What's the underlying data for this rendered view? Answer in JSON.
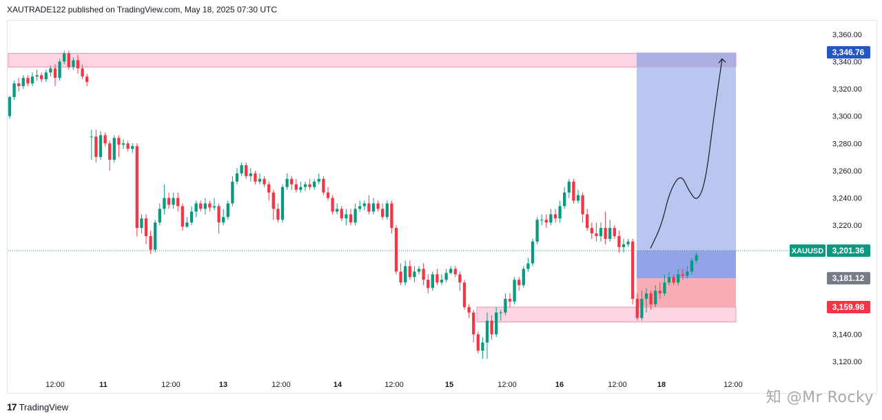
{
  "header": {
    "publisher_text": "XAUTRADE122 published on TradingView.com, May 18, 2025 07:30 UTC"
  },
  "footer": {
    "brand": "TradingView",
    "brand_mark": "17"
  },
  "watermark": {
    "text": "知 @Mr Rocky"
  },
  "colors": {
    "up": "#089981",
    "down": "#f23645",
    "profit_zone": "#b4c0ee",
    "entry_profit": "#8c9fe6",
    "stop_zone": "#f8a8b0",
    "supply_zone": "#fcd5e2",
    "target_badge": "#2455cc",
    "price_badge": "#089981",
    "entry_badge": "#787b86",
    "stop_badge": "#f23645"
  },
  "chart_data": {
    "type": "candlestick",
    "symbol": "XAUUSD",
    "y_range": [
      3110,
      3370
    ],
    "y_ticks": [
      "3,360.00",
      "3,340.00",
      "3,320.00",
      "3,300.00",
      "3,280.00",
      "3,260.00",
      "3,240.00",
      "3,220.00",
      "3,140.00",
      "3,120.00"
    ],
    "y_tick_values": [
      3360,
      3340,
      3320,
      3300,
      3280,
      3260,
      3240,
      3220,
      3140,
      3120
    ],
    "x_tick_labels": [
      "12:00",
      "11",
      "12:00",
      "13",
      "12:00",
      "14",
      "12:00",
      "15",
      "12:00",
      "16",
      "12:00",
      "18",
      "12:00"
    ],
    "x_tick_slots": [
      17,
      34.5,
      59,
      78,
      99,
      119.5,
      140,
      160,
      181,
      200,
      221,
      237,
      263
    ],
    "x_tick_bold": [
      false,
      true,
      false,
      true,
      false,
      true,
      false,
      true,
      false,
      true,
      false,
      true,
      false
    ],
    "x_slots_total": 296,
    "price_labels": {
      "target": {
        "text": "3,346.76",
        "value": 3346.76
      },
      "current_symbol": "XAUUSD",
      "current": {
        "text": "3,201.36",
        "value": 3201.36
      },
      "entry": {
        "text": "3,181.12",
        "value": 3181.12
      },
      "stop": {
        "text": "3,159.98",
        "value": 3159.98
      }
    },
    "zones": [
      {
        "name": "supply",
        "slot_start": 0,
        "slot_end": 264,
        "low": 3336,
        "high": 3346
      },
      {
        "name": "demand",
        "slot_start": 170,
        "slot_end": 264,
        "low": 3149,
        "high": 3160
      }
    ],
    "position": {
      "slot_start": 228,
      "slot_end": 264,
      "target": 3346.76,
      "entry": 3181.12,
      "stop": 3159.98,
      "current": 3201.36
    },
    "projection": [
      [
        233,
        3203
      ],
      [
        237,
        3220
      ],
      [
        240,
        3245
      ],
      [
        244,
        3258
      ],
      [
        247,
        3245
      ],
      [
        250,
        3237
      ],
      [
        253,
        3252
      ],
      [
        256,
        3300
      ],
      [
        259,
        3342
      ]
    ],
    "candles": [
      [
        3300,
        3314,
        3298,
        3315
      ],
      [
        3314,
        3324,
        3312,
        3326
      ],
      [
        3324,
        3322,
        3318,
        3328
      ],
      [
        3322,
        3328,
        3320,
        3330
      ],
      [
        3328,
        3324,
        3322,
        3330
      ],
      [
        3324,
        3329,
        3322,
        3332
      ],
      [
        3329,
        3330,
        3326,
        3334
      ],
      [
        3330,
        3327,
        3325,
        3332
      ],
      [
        3327,
        3332,
        3325,
        3334
      ],
      [
        3332,
        3335,
        3329,
        3337
      ],
      [
        3335,
        3328,
        3322,
        3338
      ],
      [
        3328,
        3340,
        3326,
        3342
      ],
      [
        3340,
        3346,
        3338,
        3348
      ],
      [
        3346,
        3336,
        3334,
        3348
      ],
      [
        3336,
        3341,
        3334,
        3343
      ],
      [
        3341,
        3335,
        3331,
        3345
      ],
      [
        3335,
        3329,
        3327,
        3338
      ],
      [
        3329,
        3325,
        3322,
        3331
      ],
      [
        3285,
        3285,
        3268,
        3290
      ],
      [
        3285,
        3270,
        3266,
        3290
      ],
      [
        3270,
        3286,
        3268,
        3289
      ],
      [
        3286,
        3280,
        3278,
        3288
      ],
      [
        3280,
        3268,
        3260,
        3282
      ],
      [
        3268,
        3284,
        3266,
        3286
      ],
      [
        3284,
        3279,
        3270,
        3286
      ],
      [
        3279,
        3280,
        3276,
        3283
      ],
      [
        3280,
        3276,
        3274,
        3282
      ],
      [
        3276,
        3278,
        3273,
        3280
      ],
      [
        3278,
        3218,
        3212,
        3280
      ],
      [
        3218,
        3225,
        3214,
        3228
      ],
      [
        3225,
        3212,
        3206,
        3228
      ],
      [
        3212,
        3202,
        3199,
        3216
      ],
      [
        3202,
        3222,
        3200,
        3224
      ],
      [
        3222,
        3232,
        3220,
        3236
      ],
      [
        3232,
        3240,
        3228,
        3250
      ],
      [
        3240,
        3235,
        3232,
        3244
      ],
      [
        3235,
        3240,
        3232,
        3244
      ],
      [
        3240,
        3234,
        3230,
        3244
      ],
      [
        3234,
        3219,
        3216,
        3236
      ],
      [
        3219,
        3222,
        3218,
        3226
      ],
      [
        3222,
        3230,
        3220,
        3234
      ],
      [
        3230,
        3236,
        3226,
        3238
      ],
      [
        3236,
        3232,
        3230,
        3238
      ],
      [
        3232,
        3236,
        3228,
        3240
      ],
      [
        3236,
        3233,
        3230,
        3238
      ],
      [
        3233,
        3234,
        3231,
        3240
      ],
      [
        3234,
        3222,
        3214,
        3236
      ],
      [
        3222,
        3226,
        3220,
        3232
      ],
      [
        3226,
        3236,
        3224,
        3238
      ],
      [
        3236,
        3252,
        3234,
        3256
      ],
      [
        3252,
        3258,
        3250,
        3262
      ],
      [
        3258,
        3264,
        3256,
        3266
      ],
      [
        3264,
        3256,
        3254,
        3266
      ],
      [
        3256,
        3258,
        3252,
        3262
      ],
      [
        3258,
        3252,
        3250,
        3260
      ],
      [
        3252,
        3254,
        3250,
        3258
      ],
      [
        3254,
        3250,
        3248,
        3256
      ],
      [
        3250,
        3244,
        3238,
        3252
      ],
      [
        3244,
        3232,
        3224,
        3246
      ],
      [
        3232,
        3224,
        3222,
        3236
      ],
      [
        3224,
        3248,
        3222,
        3250
      ],
      [
        3248,
        3254,
        3246,
        3258
      ],
      [
        3254,
        3250,
        3246,
        3256
      ],
      [
        3250,
        3246,
        3244,
        3254
      ],
      [
        3246,
        3248,
        3244,
        3252
      ],
      [
        3248,
        3250,
        3245,
        3252
      ],
      [
        3250,
        3248,
        3246,
        3254
      ],
      [
        3248,
        3252,
        3246,
        3254
      ],
      [
        3252,
        3254,
        3250,
        3258
      ],
      [
        3254,
        3244,
        3242,
        3256
      ],
      [
        3244,
        3240,
        3238,
        3248
      ],
      [
        3240,
        3230,
        3228,
        3242
      ],
      [
        3230,
        3232,
        3228,
        3236
      ],
      [
        3232,
        3225,
        3223,
        3234
      ],
      [
        3225,
        3228,
        3220,
        3232
      ],
      [
        3228,
        3222,
        3220,
        3232
      ],
      [
        3222,
        3232,
        3220,
        3236
      ],
      [
        3232,
        3234,
        3230,
        3238
      ],
      [
        3234,
        3236,
        3231,
        3238
      ],
      [
        3236,
        3230,
        3228,
        3242
      ],
      [
        3230,
        3236,
        3228,
        3240
      ],
      [
        3236,
        3232,
        3230,
        3238
      ],
      [
        3232,
        3226,
        3224,
        3236
      ],
      [
        3226,
        3236,
        3224,
        3238
      ],
      [
        3236,
        3218,
        3214,
        3238
      ],
      [
        3218,
        3186,
        3184,
        3220
      ],
      [
        3186,
        3178,
        3176,
        3192
      ],
      [
        3178,
        3190,
        3176,
        3194
      ],
      [
        3190,
        3182,
        3180,
        3194
      ],
      [
        3182,
        3186,
        3178,
        3190
      ],
      [
        3186,
        3188,
        3184,
        3190
      ],
      [
        3188,
        3180,
        3176,
        3192
      ],
      [
        3180,
        3174,
        3170,
        3184
      ],
      [
        3174,
        3184,
        3172,
        3186
      ],
      [
        3184,
        3178,
        3176,
        3188
      ],
      [
        3178,
        3180,
        3176,
        3184
      ],
      [
        3180,
        3185,
        3178,
        3188
      ],
      [
        3185,
        3188,
        3184,
        3190
      ],
      [
        3188,
        3184,
        3182,
        3190
      ],
      [
        3184,
        3178,
        3172,
        3186
      ],
      [
        3178,
        3160,
        3158,
        3180
      ],
      [
        3160,
        3156,
        3152,
        3162
      ],
      [
        3156,
        3140,
        3134,
        3158
      ],
      [
        3140,
        3128,
        3126,
        3142
      ],
      [
        3128,
        3134,
        3122,
        3138
      ],
      [
        3134,
        3150,
        3122,
        3156
      ],
      [
        3150,
        3140,
        3136,
        3154
      ],
      [
        3140,
        3156,
        3138,
        3160
      ],
      [
        3156,
        3156,
        3150,
        3158
      ],
      [
        3156,
        3166,
        3154,
        3170
      ],
      [
        3166,
        3164,
        3160,
        3170
      ],
      [
        3164,
        3180,
        3162,
        3182
      ],
      [
        3180,
        3176,
        3172,
        3182
      ],
      [
        3176,
        3188,
        3174,
        3190
      ],
      [
        3188,
        3192,
        3186,
        3196
      ],
      [
        3192,
        3208,
        3190,
        3210
      ],
      [
        3208,
        3224,
        3206,
        3226
      ],
      [
        3224,
        3224,
        3220,
        3228
      ],
      [
        3224,
        3222,
        3218,
        3228
      ],
      [
        3222,
        3228,
        3220,
        3232
      ],
      [
        3228,
        3225,
        3222,
        3232
      ],
      [
        3225,
        3234,
        3222,
        3238
      ],
      [
        3234,
        3244,
        3232,
        3248
      ],
      [
        3244,
        3252,
        3240,
        3254
      ],
      [
        3252,
        3238,
        3236,
        3254
      ],
      [
        3238,
        3242,
        3236,
        3246
      ],
      [
        3242,
        3228,
        3222,
        3244
      ],
      [
        3228,
        3218,
        3216,
        3232
      ],
      [
        3218,
        3214,
        3210,
        3222
      ],
      [
        3214,
        3212,
        3208,
        3222
      ],
      [
        3212,
        3218,
        3208,
        3222
      ],
      [
        3218,
        3210,
        3206,
        3230
      ],
      [
        3210,
        3218,
        3208,
        3224
      ],
      [
        3218,
        3212,
        3210,
        3220
      ],
      [
        3212,
        3204,
        3200,
        3216
      ],
      [
        3204,
        3206,
        3200,
        3210
      ],
      [
        3206,
        3208,
        3204,
        3210
      ],
      [
        3208,
        3166,
        3162,
        3210
      ],
      [
        3166,
        3152,
        3150,
        3170
      ],
      [
        3152,
        3166,
        3150,
        3172
      ],
      [
        3166,
        3170,
        3156,
        3174
      ],
      [
        3170,
        3162,
        3158,
        3172
      ],
      [
        3162,
        3172,
        3160,
        3176
      ],
      [
        3172,
        3170,
        3166,
        3178
      ],
      [
        3170,
        3178,
        3168,
        3184
      ],
      [
        3178,
        3182,
        3176,
        3186
      ],
      [
        3182,
        3178,
        3176,
        3184
      ],
      [
        3178,
        3184,
        3176,
        3188
      ],
      [
        3184,
        3183,
        3180,
        3188
      ],
      [
        3183,
        3186,
        3181,
        3190
      ],
      [
        3186,
        3194,
        3184,
        3196
      ],
      [
        3194,
        3198,
        3192,
        3200
      ]
    ],
    "candle_slot_start": 0,
    "candle_slot_step": 1.65
  }
}
